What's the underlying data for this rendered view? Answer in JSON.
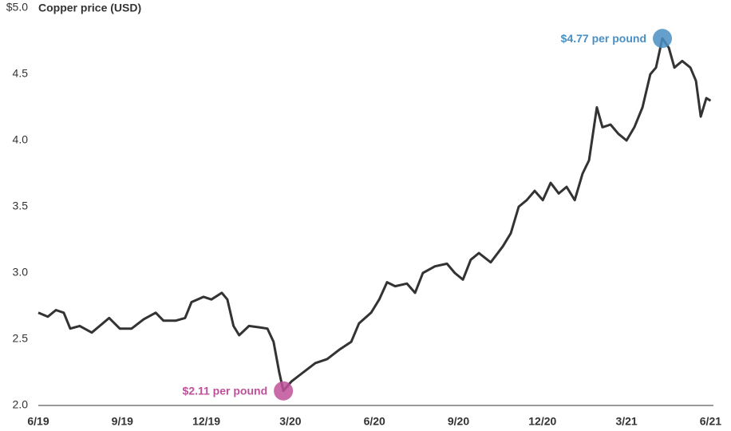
{
  "chart_data": {
    "type": "line",
    "title": "Copper price (USD)",
    "x": [
      0,
      0.34,
      0.63,
      0.91,
      1.14,
      1.48,
      1.91,
      2.19,
      2.53,
      2.91,
      3.33,
      3.76,
      4.19,
      4.47,
      4.9,
      5.24,
      5.47,
      5.9,
      6.18,
      6.55,
      6.75,
      6.97,
      7.17,
      7.52,
      7.89,
      8.18,
      8.4,
      8.6,
      8.75,
      9.03,
      9.46,
      9.89,
      10.31,
      10.74,
      11.17,
      11.45,
      11.88,
      12.17,
      12.45,
      12.74,
      13.16,
      13.45,
      13.73,
      14.16,
      14.59,
      14.87,
      15.16,
      15.44,
      15.73,
      16.15,
      16.58,
      16.87,
      17.15,
      17.44,
      17.72,
      18.01,
      18.29,
      18.58,
      18.86,
      19.15,
      19.43,
      19.66,
      19.94,
      20.14,
      20.43,
      20.71,
      21.0,
      21.28,
      21.57,
      21.85,
      22.05,
      22.28,
      22.51,
      22.71,
      22.99,
      23.28,
      23.48,
      23.65,
      23.85,
      24.0
    ],
    "series": [
      {
        "name": "Copper price",
        "color": "#333333",
        "values": [
          2.7,
          2.67,
          2.72,
          2.7,
          2.58,
          2.6,
          2.55,
          2.6,
          2.66,
          2.58,
          2.58,
          2.65,
          2.7,
          2.64,
          2.64,
          2.66,
          2.78,
          2.82,
          2.8,
          2.85,
          2.8,
          2.6,
          2.53,
          2.6,
          2.59,
          2.58,
          2.48,
          2.25,
          2.11,
          2.18,
          2.25,
          2.32,
          2.35,
          2.42,
          2.48,
          2.62,
          2.7,
          2.8,
          2.93,
          2.9,
          2.92,
          2.85,
          3.0,
          3.05,
          3.07,
          3.0,
          2.95,
          3.1,
          3.15,
          3.08,
          3.2,
          3.3,
          3.5,
          3.55,
          3.62,
          3.55,
          3.68,
          3.6,
          3.65,
          3.55,
          3.75,
          3.85,
          4.25,
          4.1,
          4.12,
          4.05,
          4.0,
          4.1,
          4.25,
          4.5,
          4.55,
          4.77,
          4.7,
          4.55,
          4.6,
          4.55,
          4.45,
          4.18,
          4.32,
          4.3
        ]
      }
    ],
    "xlim": [
      0,
      24.1
    ],
    "xticks": [
      {
        "value": 0,
        "label": "6/19"
      },
      {
        "value": 3,
        "label": "9/19"
      },
      {
        "value": 6,
        "label": "12/19"
      },
      {
        "value": 9,
        "label": "3/20"
      },
      {
        "value": 12,
        "label": "6/20"
      },
      {
        "value": 15,
        "label": "9/20"
      },
      {
        "value": 18,
        "label": "12/20"
      },
      {
        "value": 21,
        "label": "3/21"
      },
      {
        "value": 24,
        "label": "6/21"
      }
    ],
    "ylim": [
      2,
      5
    ],
    "yticks": [
      {
        "value": 2,
        "label": "2.0"
      },
      {
        "value": 2.5,
        "label": "2.5"
      },
      {
        "value": 3,
        "label": "3.0"
      },
      {
        "value": 3.5,
        "label": "3.5"
      },
      {
        "value": 4,
        "label": "4.0"
      },
      {
        "value": 4.5,
        "label": "4.5"
      },
      {
        "value": 5,
        "label": "$5.0"
      }
    ],
    "annotations": [
      {
        "label": "$4.77 per pound",
        "x": 22.28,
        "value": 4.77,
        "color": "#4a8fc4"
      },
      {
        "label": "$2.11 per pound",
        "x": 8.75,
        "value": 2.11,
        "color": "#c0509a"
      }
    ]
  }
}
